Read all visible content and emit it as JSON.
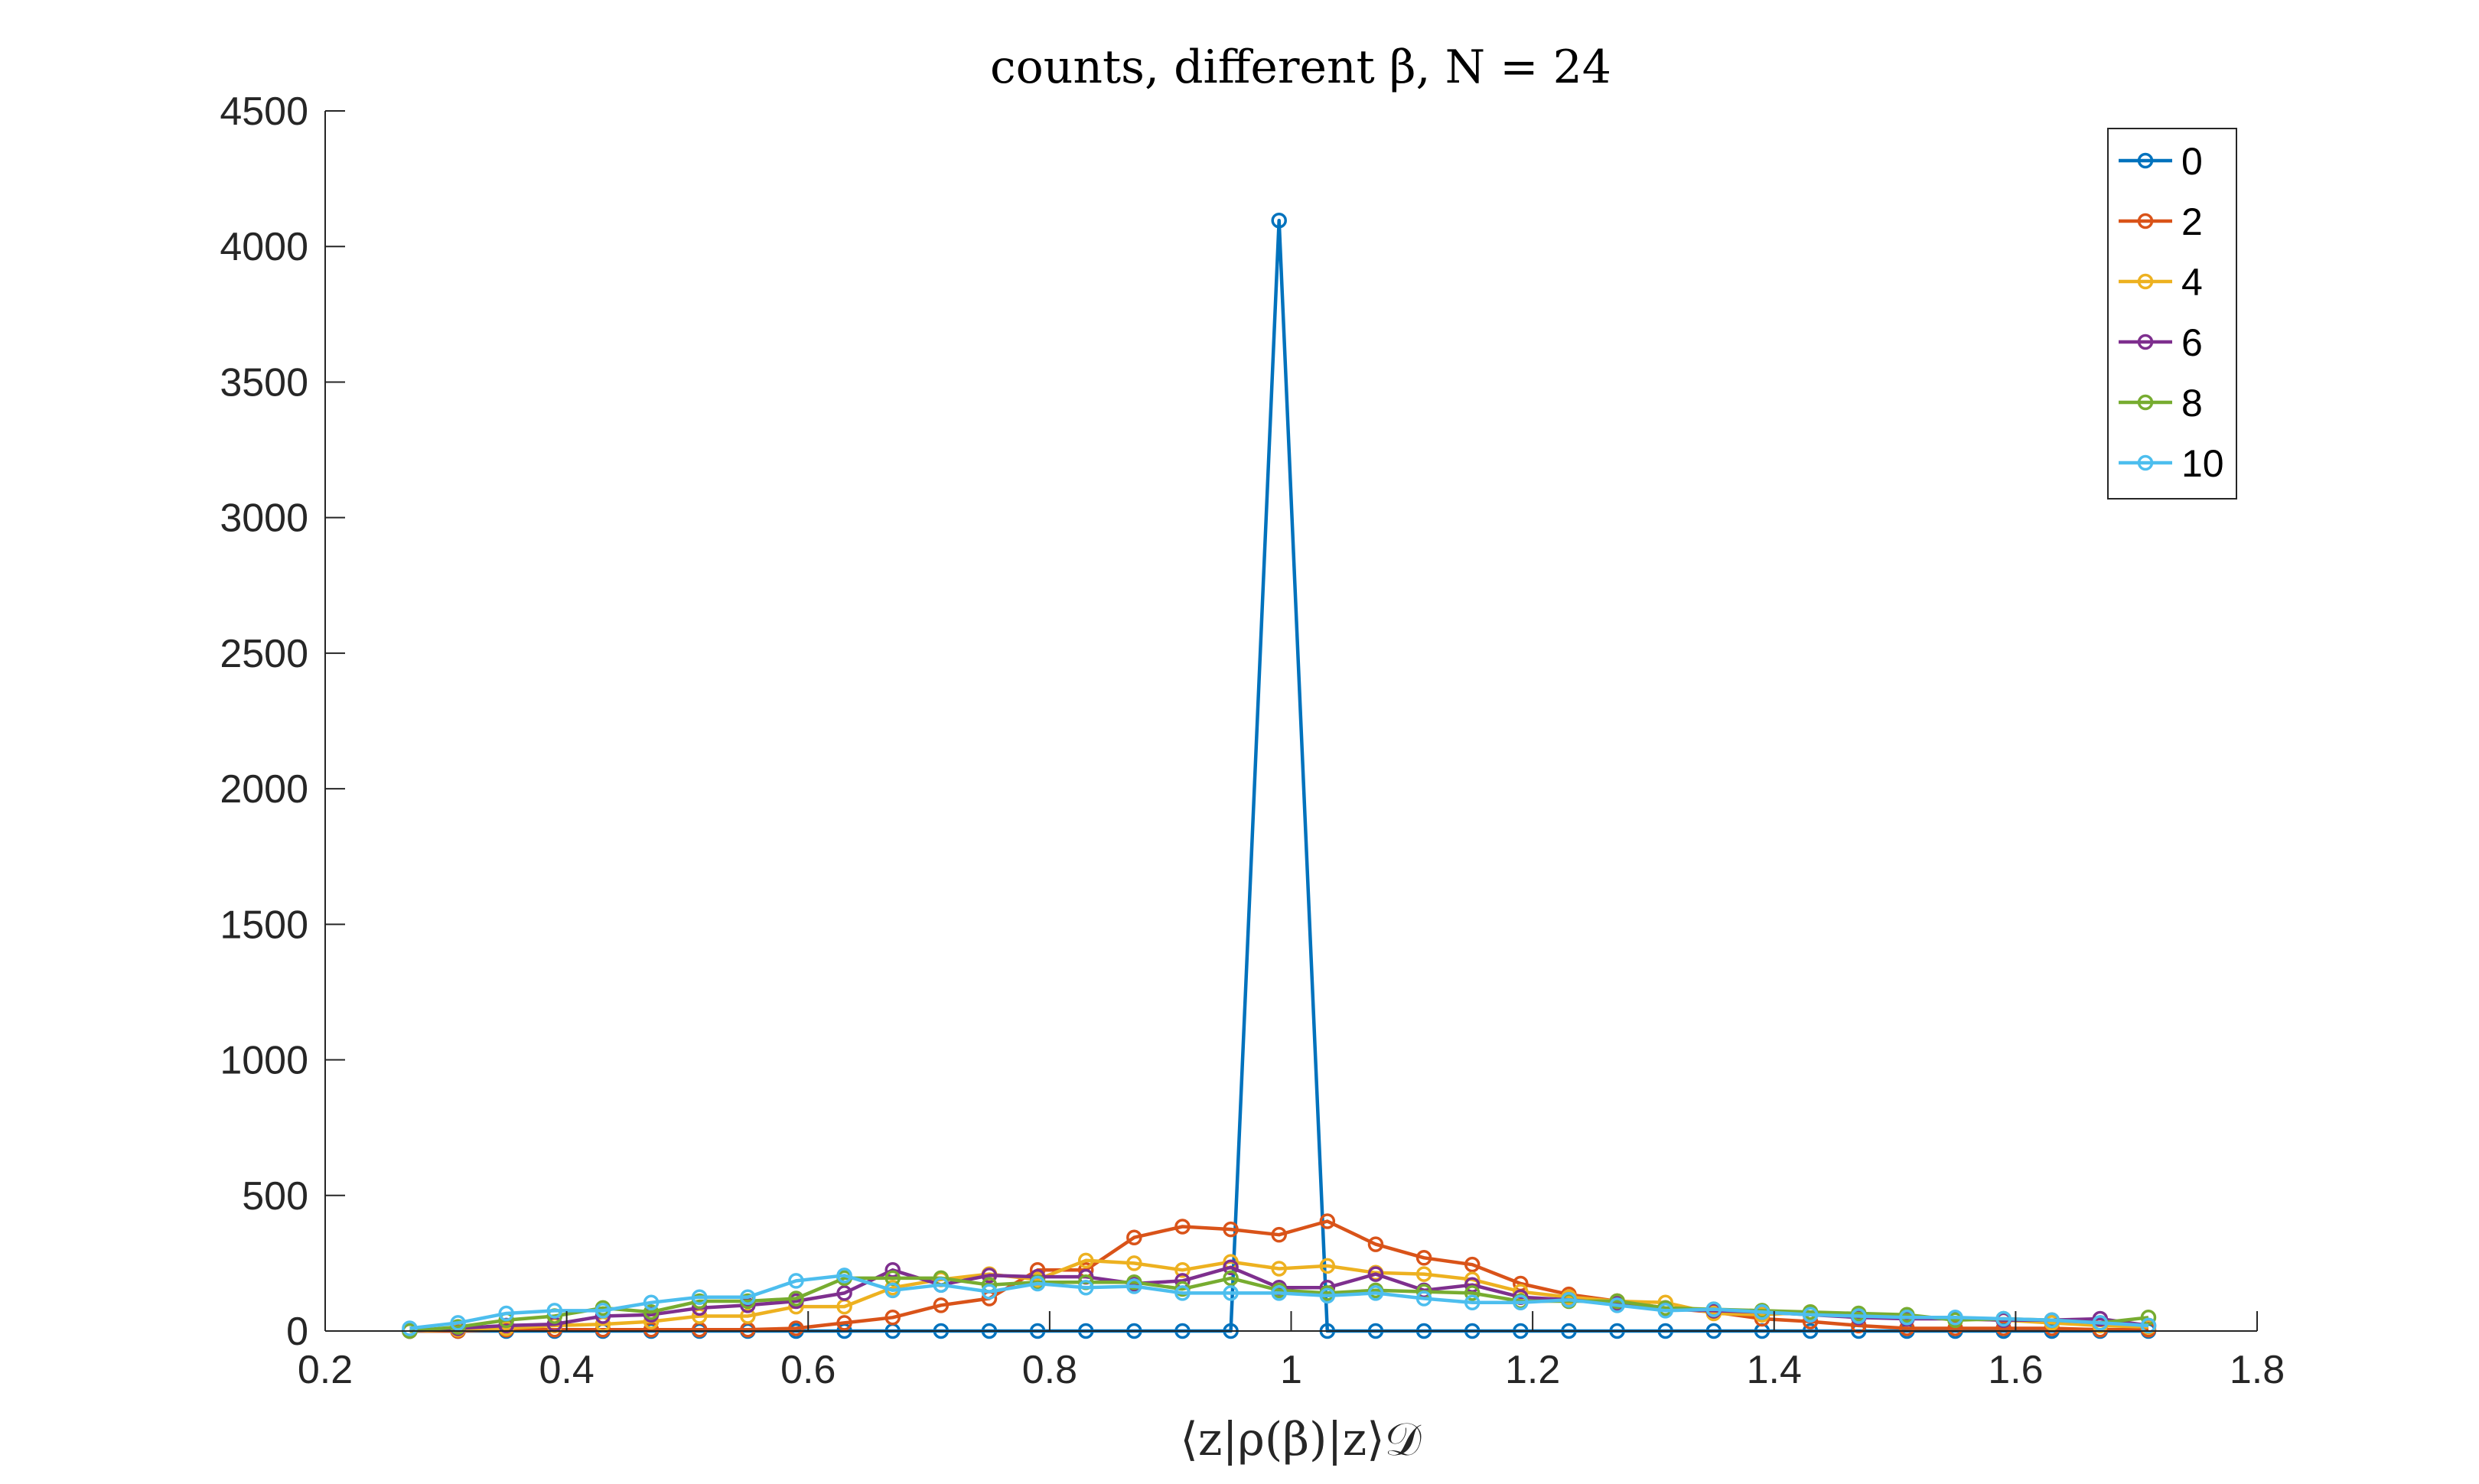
{
  "chart_data": {
    "type": "line",
    "title": "counts, different β, N = 24",
    "xlabel": "⟨z|ρ(β)|z⟩𝒟",
    "ylabel": "",
    "xlim": [
      0.2,
      1.8
    ],
    "ylim": [
      0,
      4500
    ],
    "xticks": [
      "0.2",
      "0.4",
      "0.6",
      "0.8",
      "1",
      "1.2",
      "1.4",
      "1.6",
      "1.8"
    ],
    "yticks": [
      "0",
      "500",
      "1000",
      "1500",
      "2000",
      "2500",
      "3000",
      "3500",
      "4000",
      "4500"
    ],
    "grid": false,
    "legend_position": "top-right",
    "x": [
      0.27,
      0.31,
      0.35,
      0.39,
      0.43,
      0.47,
      0.51,
      0.55,
      0.59,
      0.63,
      0.67,
      0.71,
      0.75,
      0.79,
      0.83,
      0.87,
      0.91,
      0.95,
      0.99,
      1.03,
      1.07,
      1.11,
      1.15,
      1.19,
      1.23,
      1.27,
      1.31,
      1.35,
      1.39,
      1.43,
      1.47,
      1.51,
      1.55,
      1.59,
      1.63,
      1.67,
      1.71
    ],
    "series": [
      {
        "name": "0",
        "color": "#0072BD",
        "values": [
          0,
          0,
          0,
          0,
          0,
          0,
          0,
          0,
          0,
          0,
          0,
          0,
          0,
          0,
          0,
          0,
          0,
          0,
          4096,
          0,
          0,
          0,
          0,
          0,
          0,
          0,
          0,
          0,
          0,
          0,
          0,
          0,
          0,
          0,
          0,
          0,
          0
        ]
      },
      {
        "name": "2",
        "color": "#D95319",
        "values": [
          0,
          0,
          5,
          5,
          5,
          5,
          5,
          5,
          10,
          30,
          50,
          95,
          120,
          225,
          225,
          345,
          385,
          375,
          355,
          405,
          320,
          270,
          245,
          175,
          135,
          110,
          85,
          70,
          45,
          35,
          20,
          10,
          10,
          10,
          10,
          5,
          5
        ]
      },
      {
        "name": "4",
        "color": "#EDB120",
        "values": [
          0,
          5,
          10,
          20,
          25,
          35,
          55,
          55,
          90,
          90,
          160,
          190,
          210,
          190,
          260,
          250,
          225,
          255,
          230,
          240,
          215,
          210,
          190,
          145,
          125,
          110,
          105,
          65,
          60,
          70,
          60,
          50,
          45,
          40,
          30,
          20,
          15
        ]
      },
      {
        "name": "6",
        "color": "#7E2F8E",
        "values": [
          0,
          10,
          20,
          25,
          55,
          60,
          85,
          95,
          110,
          140,
          225,
          170,
          205,
          200,
          200,
          175,
          185,
          235,
          160,
          160,
          210,
          150,
          170,
          125,
          115,
          100,
          80,
          75,
          70,
          60,
          50,
          45,
          45,
          40,
          40,
          45,
          20
        ]
      },
      {
        "name": "8",
        "color": "#77AC30",
        "values": [
          0,
          15,
          40,
          55,
          85,
          70,
          110,
          110,
          120,
          195,
          195,
          195,
          170,
          180,
          180,
          180,
          155,
          195,
          150,
          140,
          150,
          145,
          140,
          110,
          110,
          110,
          85,
          80,
          75,
          70,
          65,
          60,
          40,
          45,
          40,
          30,
          50
        ]
      },
      {
        "name": "10",
        "color": "#4DBEEE",
        "values": [
          10,
          30,
          65,
          75,
          75,
          105,
          125,
          125,
          185,
          205,
          150,
          170,
          145,
          175,
          160,
          165,
          140,
          140,
          140,
          130,
          140,
          120,
          105,
          105,
          115,
          95,
          75,
          80,
          70,
          60,
          55,
          50,
          50,
          45,
          40,
          30,
          20
        ]
      }
    ]
  }
}
